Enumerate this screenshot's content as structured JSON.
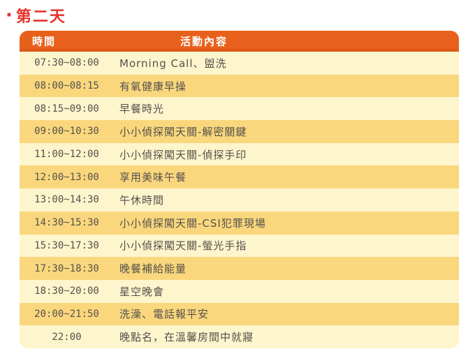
{
  "page": {
    "title_bullet": "·",
    "title": "第二天"
  },
  "colors": {
    "title_red": "#e5332b",
    "header_orange": "#e8611c",
    "row_light_yellow": "#fdf5cc",
    "row_dark_yellow": "#fad77d",
    "header_text": "#ffffff",
    "body_text": "#55514c"
  },
  "table": {
    "headers": {
      "time": "時間",
      "activity": "活動內容"
    },
    "rows": [
      {
        "time": "07:30~08:00",
        "activity": "Morning Call、盥洗"
      },
      {
        "time": "08:00~08:15",
        "activity": "有氧健康早操"
      },
      {
        "time": "08:15~09:00",
        "activity": "早餐時光"
      },
      {
        "time": "09:00~10:30",
        "activity": "小小偵探闖天關-解密關鍵"
      },
      {
        "time": "11:00~12:00",
        "activity": "小小偵探闖天關-偵探手印"
      },
      {
        "time": "12:00~13:00",
        "activity": "享用美味午餐"
      },
      {
        "time": "13:00~14:30",
        "activity": "午休時間"
      },
      {
        "time": "14:30~15:30",
        "activity": "小小偵探闖天關-CSI犯罪現場"
      },
      {
        "time": "15:30~17:30",
        "activity": "小小偵探闖天關-螢光手指"
      },
      {
        "time": "17:30~18:30",
        "activity": "晚餐補給能量"
      },
      {
        "time": "18:30~20:00",
        "activity": "星空晚會"
      },
      {
        "time": "20:00~21:50",
        "activity": "洗澡、電話報平安"
      },
      {
        "time": "22:00",
        "activity": "晚點名，在溫馨房間中就寢"
      }
    ]
  }
}
